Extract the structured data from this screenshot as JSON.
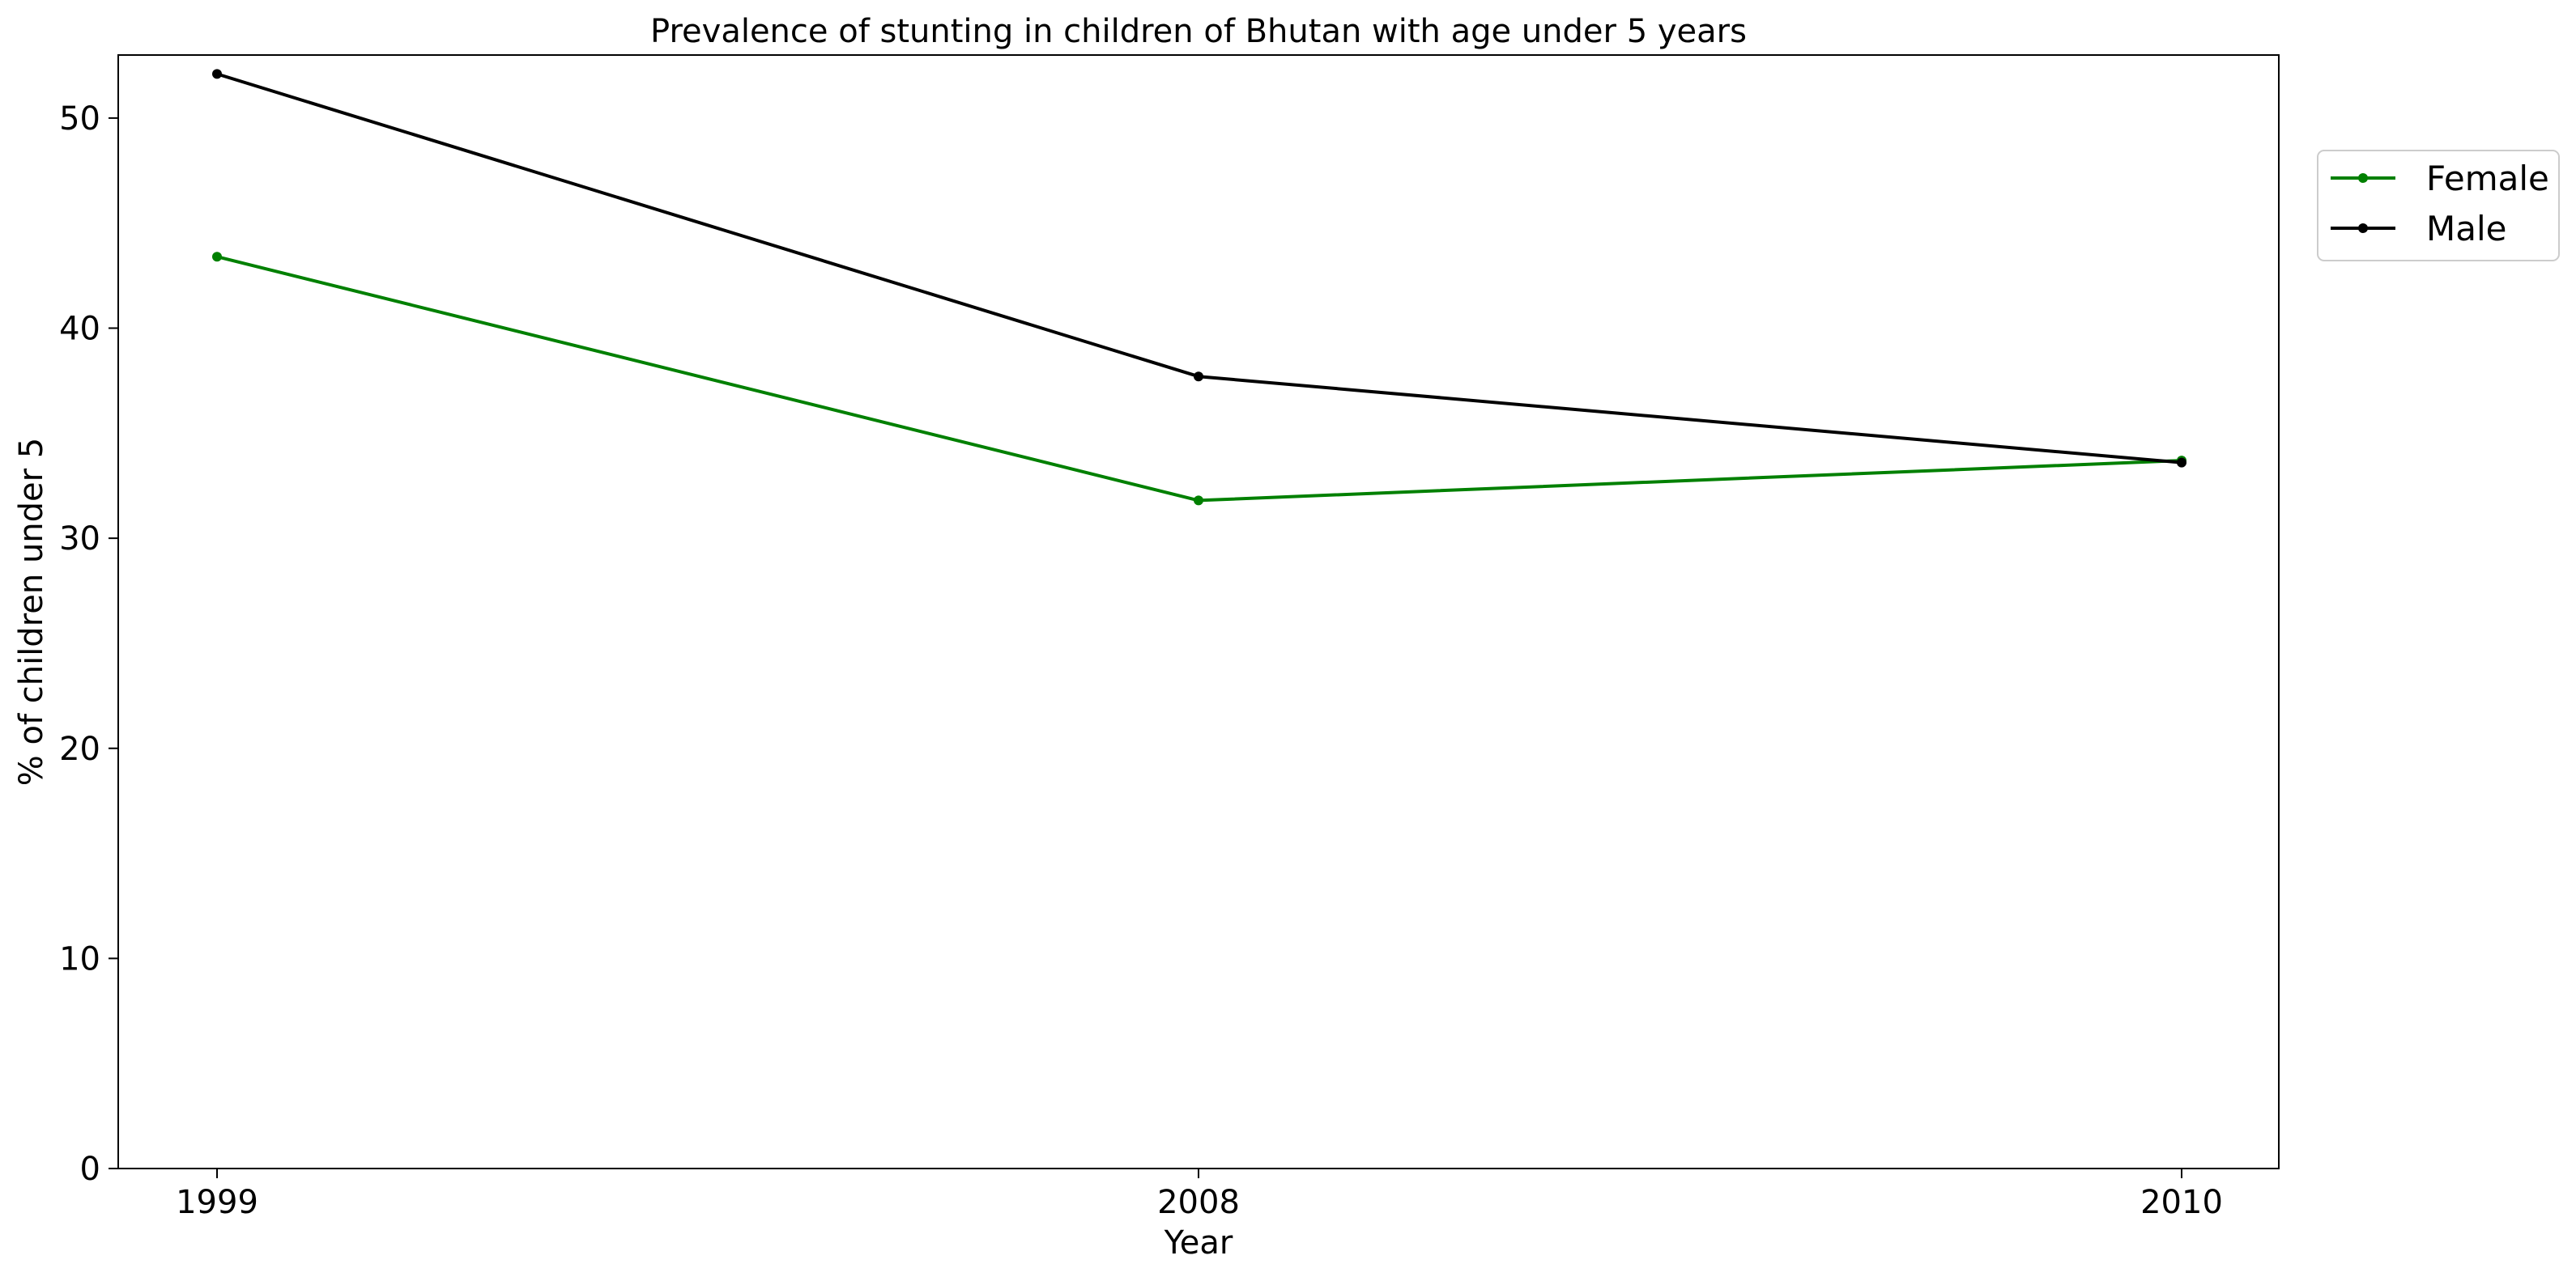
{
  "chart_data": {
    "type": "line",
    "title": "Prevalence of stunting in children of Bhutan with age under 5 years",
    "xlabel": "Year",
    "ylabel": "% of children under 5",
    "categories": [
      "1999",
      "2008",
      "2010"
    ],
    "yticks": [
      0,
      10,
      20,
      30,
      40,
      50
    ],
    "ylim": [
      0,
      53
    ],
    "grid": false,
    "legend_position": "top-right, outside plot area",
    "series": [
      {
        "name": "Female",
        "color": "#008000",
        "values": [
          43.4,
          31.8,
          33.7
        ]
      },
      {
        "name": "Male",
        "color": "#000000",
        "values": [
          52.1,
          37.7,
          33.6
        ]
      }
    ]
  }
}
